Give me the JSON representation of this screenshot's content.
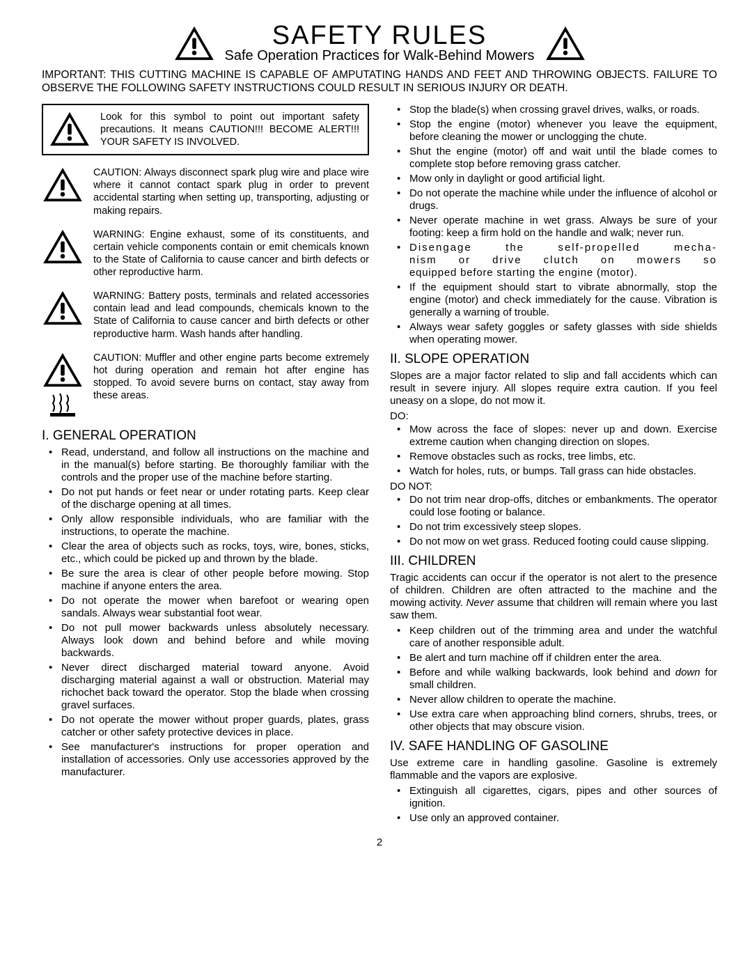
{
  "header": {
    "title": "SAFETY RULES",
    "subtitle": "Safe Operation Practices for Walk-Behind Mowers",
    "important": "IMPORTANT:  THIS CUTTING MACHINE IS CAPABLE OF AMPUTATING HANDS AND FEET AND THROWING OBJECTS.  FAILURE TO OBSERVE THE FOLLOWING SAFETY INSTRUCTIONS COULD RESULT IN SERIOUS INJURY OR DEATH."
  },
  "warnings": [
    "Look for this symbol to point out important safety precautions.  It means CAUTION!!!  BECOME ALERT!!!  YOUR SAFETY IS INVOLVED.",
    "CAUTION: Always disconnect spark plug wire and place wire where it cannot contact spark plug in order to prevent accidental starting when setting up, transporting, adjusting or making repairs.",
    "WARNING: Engine exhaust, some of its constituents, and certain vehicle components contain or emit chemicals known to the State of California to cause cancer and birth defects or other reproductive harm.",
    "WARNING: Battery posts, terminals and related accessories contain lead and lead compounds, chemicals known to the State of California to cause cancer and birth defects or other reproductive harm. Wash hands after handling.",
    "CAUTION: Muffler and other engine parts become extremely hot during operation and remain hot after engine has stopped. To avoid severe burns on contact, stay away from these areas."
  ],
  "sections": {
    "general": {
      "head": "I. GENERAL OPERATION",
      "items_a": [
        "Read, understand, and follow all instructions on the machine and in the manual(s) before starting. Be thoroughly familiar with the controls and the proper use of the machine before starting.",
        "Do not put hands or feet near or under rotating parts. Keep clear of the discharge opening at all times.",
        "Only allow responsible individuals, who are familiar with the instructions, to operate the machine.",
        "Clear the area of objects such as  rocks, toys, wire, bones, sticks, etc.,  which could be picked up and thrown by the blade.",
        "Be sure the area is clear of other people before mowing.  Stop machine if anyone enters the area.",
        "Do not operate the mower when barefoot or wearing open sandals.  Always wear substantial foot wear.",
        "Do not pull mower backwards unless absolutely necessary.  Always look down and behind before and while moving backwards.",
        "Never direct discharged material toward anyone. Avoid discharging material against a wall or obstruction.  Material may richochet back toward the operator. Stop the blade when crossing gravel surfaces.",
        "Do not operate the mower without proper guards, plates, grass catcher or other safety protective devices in place.",
        "See manufacturer's instructions for proper operation and installation of accessories. Only use accessories approved by the manufacturer."
      ],
      "items_b": [
        "Stop the blade(s) when crossing gravel drives, walks, or roads.",
        "Stop the engine (motor) whenever you leave the equipment, before cleaning the mower or unclogging the chute.",
        "Shut the engine (motor) off and wait until the blade comes to complete stop before removing grass catcher.",
        "Mow only in daylight or good artificial light.",
        "Do not operate the machine while under the influence of alcohol or drugs.",
        "Never operate machine in wet grass.  Always be sure of your footing: keep a firm hold on the handle and walk; never run.",
        "__DISENGAGE__",
        "If the equipment should start to vibrate abnormally, stop the engine (motor) and check immediately for the cause.  Vibration is generally a warning of trouble.",
        "Always wear safety goggles or safety glasses with side shields when operating mower."
      ],
      "disengage_a": "Disengage the self-propelled mecha-",
      "disengage_b": "nism or drive clutch on mowers so",
      "disengage_c": "equipped before starting the engine (motor)."
    },
    "slope": {
      "head": "II.  SLOPE OPERATION",
      "intro": "Slopes are a major factor related to slip and fall accidents which can result in severe injury.  All slopes require extra caution.  If you feel uneasy on a slope, do not mow it.",
      "do_label": "DO:",
      "do_items": [
        "Mow across the face of slopes: never up and down.  Exercise extreme caution when changing direction on slopes.",
        "Remove obstacles such as rocks, tree limbs, etc.",
        "Watch for holes, ruts, or bumps. Tall grass can hide obstacles."
      ],
      "donot_label": "DO NOT:",
      "donot_items": [
        "Do not trim near drop-offs, ditches or embankments. The operator could lose footing or balance.",
        "Do not trim excessively steep slopes.",
        "Do not mow on wet grass. Reduced footing could cause slipping."
      ]
    },
    "children": {
      "head": "III. CHILDREN",
      "intro_a": "Tragic accidents can occur if the operator is not alert to the presence of children.  Children are often attracted to the machine and the mowing activity. ",
      "intro_never": "Never",
      "intro_b": " assume that children will remain where you last saw them.",
      "items": [
        "Keep children out of the trimming area and under the watchful care of another responsible adult.",
        "Be alert and turn machine off if children enter the area.",
        "__BACKWARDS__",
        "Never allow children to operate the machine.",
        "Use extra care when approaching blind corners, shrubs, trees, or other objects that may obscure vision."
      ],
      "back_a": "Before and while walking backwards, look behind and ",
      "back_down": "down",
      "back_b": " for small children."
    },
    "gasoline": {
      "head": "IV. SAFE HANDLING OF GASOLINE",
      "intro": "Use extreme care in handling gasoline.  Gasoline is extremely flammable and the vapors are explosive.",
      "items": [
        "Extinguish all cigarettes, cigars, pipes and other sources of ignition.",
        "Use only an approved container."
      ]
    }
  },
  "page": "2"
}
